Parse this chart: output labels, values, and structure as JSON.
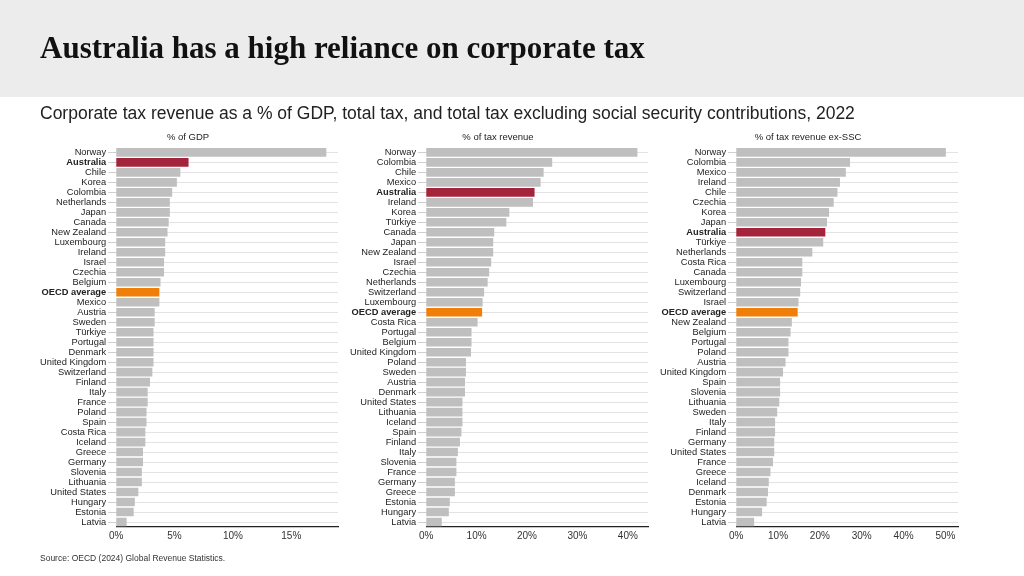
{
  "chart_data": [
    {
      "type": "other",
      "title": "Australia has a high reliance on corporate tax",
      "subtitle": "Corporate tax revenue as a % of GDP, total tax, and total tax excluding social security contributions, 2022",
      "annotations": [
        "Source: OECD (2024) Global Revenue Statistics."
      ]
    },
    {
      "type": "bar",
      "orientation": "horizontal",
      "title": "% of GDP",
      "grid": "y",
      "categories": [
        "Norway",
        "Australia",
        "Chile",
        "Korea",
        "Colombia",
        "Netherlands",
        "Japan",
        "Canada",
        "New Zealand",
        "Luxembourg",
        "Ireland",
        "Israel",
        "Czechia",
        "Belgium",
        "OECD average",
        "Mexico",
        "Austria",
        "Sweden",
        "Türkiye",
        "Portugal",
        "Denmark",
        "United Kingdom",
        "Switzerland",
        "Finland",
        "Italy",
        "France",
        "Poland",
        "Spain",
        "Costa Rica",
        "Iceland",
        "Greece",
        "Germany",
        "Slovenia",
        "Lithuania",
        "United States",
        "Hungary",
        "Estonia",
        "Latvia"
      ],
      "values": [
        18.0,
        6.2,
        5.5,
        5.2,
        4.8,
        4.6,
        4.6,
        4.5,
        4.4,
        4.2,
        4.2,
        4.1,
        4.1,
        3.8,
        3.7,
        3.7,
        3.3,
        3.3,
        3.2,
        3.2,
        3.2,
        3.2,
        3.1,
        2.9,
        2.7,
        2.7,
        2.6,
        2.6,
        2.5,
        2.5,
        2.3,
        2.3,
        2.2,
        2.2,
        1.9,
        1.6,
        1.5,
        0.9
      ],
      "colors": [
        "#bfbfbf",
        "#a4243b",
        "#bfbfbf",
        "#bfbfbf",
        "#bfbfbf",
        "#bfbfbf",
        "#bfbfbf",
        "#bfbfbf",
        "#bfbfbf",
        "#bfbfbf",
        "#bfbfbf",
        "#bfbfbf",
        "#bfbfbf",
        "#bfbfbf",
        "#f07f09",
        "#bfbfbf",
        "#bfbfbf",
        "#bfbfbf",
        "#bfbfbf",
        "#bfbfbf",
        "#bfbfbf",
        "#bfbfbf",
        "#bfbfbf",
        "#bfbfbf",
        "#bfbfbf",
        "#bfbfbf",
        "#bfbfbf",
        "#bfbfbf",
        "#bfbfbf",
        "#bfbfbf",
        "#bfbfbf",
        "#bfbfbf",
        "#bfbfbf",
        "#bfbfbf",
        "#bfbfbf",
        "#bfbfbf",
        "#bfbfbf",
        "#bfbfbf"
      ],
      "xlim": [
        0,
        19
      ],
      "xticks": [
        {
          "value": 0,
          "label": "0%"
        },
        {
          "value": 5,
          "label": "5%"
        },
        {
          "value": 10,
          "label": "10%"
        },
        {
          "value": 15,
          "label": "15%"
        }
      ]
    },
    {
      "type": "bar",
      "orientation": "horizontal",
      "title": "% of tax revenue",
      "grid": "y",
      "categories": [
        "Norway",
        "Colombia",
        "Chile",
        "Mexico",
        "Australia",
        "Ireland",
        "Korea",
        "Türkiye",
        "Canada",
        "Japan",
        "New Zealand",
        "Israel",
        "Czechia",
        "Netherlands",
        "Switzerland",
        "Luxembourg",
        "OECD average",
        "Costa Rica",
        "Portugal",
        "Belgium",
        "United Kingdom",
        "Poland",
        "Sweden",
        "Austria",
        "Denmark",
        "United States",
        "Lithuania",
        "Iceland",
        "Spain",
        "Finland",
        "Italy",
        "Slovenia",
        "France",
        "Germany",
        "Greece",
        "Estonia",
        "Hungary",
        "Latvia"
      ],
      "values": [
        41.9,
        25.0,
        23.3,
        22.7,
        21.5,
        21.2,
        16.5,
        15.9,
        13.5,
        13.3,
        13.3,
        12.9,
        12.5,
        12.2,
        11.5,
        11.2,
        11.1,
        10.2,
        9.0,
        9.0,
        8.9,
        7.9,
        7.9,
        7.7,
        7.7,
        7.2,
        7.2,
        7.2,
        7.0,
        6.7,
        6.3,
        6.0,
        6.0,
        5.7,
        5.7,
        4.7,
        4.5,
        3.1
      ],
      "colors": [
        "#bfbfbf",
        "#bfbfbf",
        "#bfbfbf",
        "#bfbfbf",
        "#a4243b",
        "#bfbfbf",
        "#bfbfbf",
        "#bfbfbf",
        "#bfbfbf",
        "#bfbfbf",
        "#bfbfbf",
        "#bfbfbf",
        "#bfbfbf",
        "#bfbfbf",
        "#bfbfbf",
        "#bfbfbf",
        "#f07f09",
        "#bfbfbf",
        "#bfbfbf",
        "#bfbfbf",
        "#bfbfbf",
        "#bfbfbf",
        "#bfbfbf",
        "#bfbfbf",
        "#bfbfbf",
        "#bfbfbf",
        "#bfbfbf",
        "#bfbfbf",
        "#bfbfbf",
        "#bfbfbf",
        "#bfbfbf",
        "#bfbfbf",
        "#bfbfbf",
        "#bfbfbf",
        "#bfbfbf",
        "#bfbfbf",
        "#bfbfbf",
        "#bfbfbf"
      ],
      "xlim": [
        0,
        44
      ],
      "xticks": [
        {
          "value": 0,
          "label": "0%"
        },
        {
          "value": 10,
          "label": "10%"
        },
        {
          "value": 20,
          "label": "20%"
        },
        {
          "value": 30,
          "label": "30%"
        },
        {
          "value": 40,
          "label": "40%"
        }
      ]
    },
    {
      "type": "bar",
      "orientation": "horizontal",
      "title": "% of tax revenue ex-SSC",
      "grid": "y",
      "categories": [
        "Norway",
        "Colombia",
        "Mexico",
        "Ireland",
        "Chile",
        "Czechia",
        "Korea",
        "Japan",
        "Australia",
        "Türkiye",
        "Netherlands",
        "Costa Rica",
        "Canada",
        "Luxembourg",
        "Switzerland",
        "Israel",
        "OECD average",
        "New Zealand",
        "Belgium",
        "Portugal",
        "Poland",
        "Austria",
        "United Kingdom",
        "Spain",
        "Slovenia",
        "Lithuania",
        "Sweden",
        "Italy",
        "Finland",
        "Germany",
        "United States",
        "France",
        "Greece",
        "Iceland",
        "Denmark",
        "Estonia",
        "Hungary",
        "Latvia"
      ],
      "values": [
        50.1,
        27.2,
        26.2,
        24.8,
        24.2,
        23.3,
        22.2,
        21.7,
        21.3,
        20.8,
        18.2,
        15.8,
        15.8,
        15.5,
        15.3,
        14.9,
        14.7,
        13.3,
        13.0,
        12.5,
        12.5,
        11.8,
        11.2,
        10.5,
        10.5,
        10.3,
        9.8,
        9.3,
        9.3,
        9.1,
        9.1,
        8.8,
        8.2,
        7.8,
        7.6,
        7.3,
        6.2,
        4.3
      ],
      "colors": [
        "#bfbfbf",
        "#bfbfbf",
        "#bfbfbf",
        "#bfbfbf",
        "#bfbfbf",
        "#bfbfbf",
        "#bfbfbf",
        "#bfbfbf",
        "#a4243b",
        "#bfbfbf",
        "#bfbfbf",
        "#bfbfbf",
        "#bfbfbf",
        "#bfbfbf",
        "#bfbfbf",
        "#bfbfbf",
        "#f07f09",
        "#bfbfbf",
        "#bfbfbf",
        "#bfbfbf",
        "#bfbfbf",
        "#bfbfbf",
        "#bfbfbf",
        "#bfbfbf",
        "#bfbfbf",
        "#bfbfbf",
        "#bfbfbf",
        "#bfbfbf",
        "#bfbfbf",
        "#bfbfbf",
        "#bfbfbf",
        "#bfbfbf",
        "#bfbfbf",
        "#bfbfbf",
        "#bfbfbf",
        "#bfbfbf",
        "#bfbfbf",
        "#bfbfbf"
      ],
      "xlim": [
        0,
        53
      ],
      "xticks": [
        {
          "value": 0,
          "label": "0%"
        },
        {
          "value": 10,
          "label": "10%"
        },
        {
          "value": 20,
          "label": "20%"
        },
        {
          "value": 30,
          "label": "30%"
        },
        {
          "value": 40,
          "label": "40%"
        },
        {
          "value": 50,
          "label": "50%"
        }
      ]
    }
  ]
}
